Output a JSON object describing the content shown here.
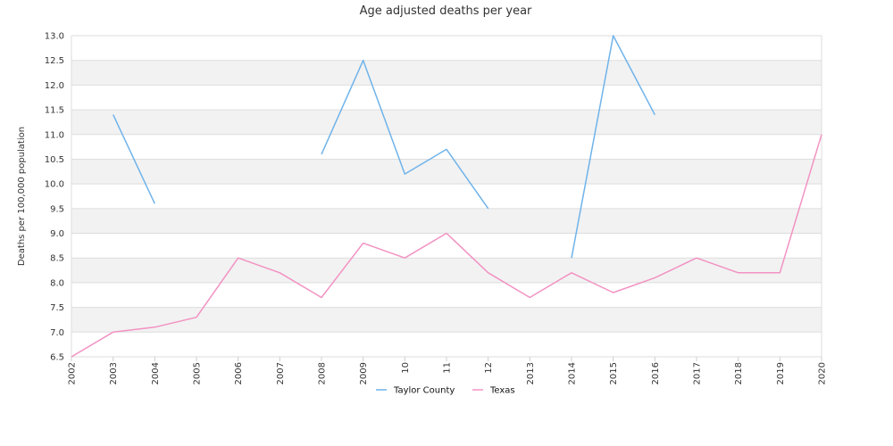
{
  "chart_data": {
    "type": "line",
    "title": "Age adjusted deaths per year",
    "ylabel": "Deaths per 100,000 population",
    "xlabel": "",
    "ylim": [
      6.5,
      13.0
    ],
    "ytick_step": 0.5,
    "grid": true,
    "legend_position": "bottom",
    "x_categories": [
      "2002",
      "2003",
      "2004",
      "2005",
      "2006",
      "2007",
      "2008",
      "2009",
      "10",
      "11",
      "12",
      "2013",
      "2014",
      "2015",
      "2016",
      "2017",
      "2018",
      "2019",
      "2020"
    ],
    "series": [
      {
        "name": "Taylor County",
        "color": "#6fb3ea",
        "values": [
          null,
          11.4,
          9.6,
          null,
          null,
          null,
          10.6,
          12.5,
          10.2,
          10.7,
          9.5,
          null,
          8.5,
          13.0,
          11.4,
          null,
          null,
          null,
          null
        ]
      },
      {
        "name": "Texas",
        "color": "#f292c3",
        "values": [
          6.5,
          7.0,
          7.1,
          7.3,
          8.5,
          8.2,
          7.7,
          8.8,
          8.5,
          9.0,
          8.2,
          7.7,
          8.2,
          7.8,
          8.1,
          8.5,
          8.2,
          8.2,
          11.0
        ]
      }
    ],
    "band_color": "#f2f2f2",
    "grid_color": "#dddddd"
  }
}
